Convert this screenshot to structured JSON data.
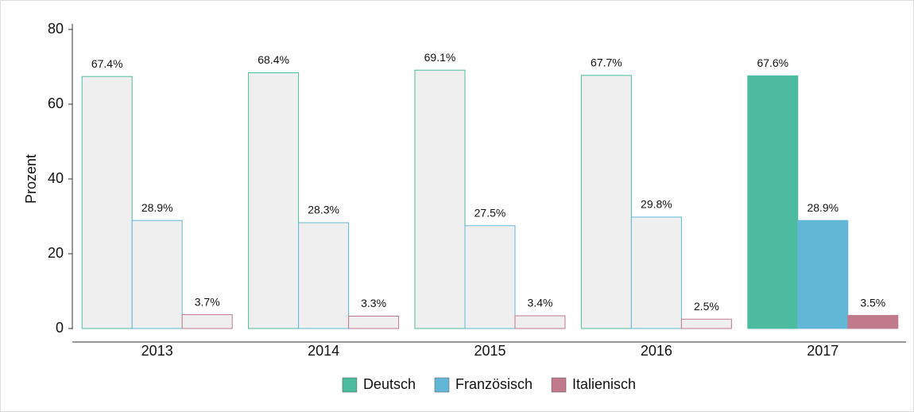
{
  "chart_data": {
    "type": "bar",
    "y_label": "Prozent",
    "categories": [
      "2013",
      "2014",
      "2015",
      "2016",
      "2017"
    ],
    "series": [
      {
        "name": "Deutsch",
        "color": "#4dbb9f",
        "values": [
          67.4,
          68.4,
          69.1,
          67.7,
          67.6
        ],
        "value_labels": [
          "67.4%",
          "68.4%",
          "69.1%",
          "67.7%",
          "67.6%"
        ]
      },
      {
        "name": "Französisch",
        "color": "#63b7d6",
        "values": [
          28.9,
          28.3,
          27.5,
          29.8,
          28.9
        ],
        "value_labels": [
          "28.9%",
          "28.3%",
          "27.5%",
          "29.8%",
          "28.9%"
        ]
      },
      {
        "name": "Italienisch",
        "color": "#c07a8c",
        "values": [
          3.7,
          3.3,
          3.4,
          2.5,
          3.5
        ],
        "value_labels": [
          "3.7%",
          "3.3%",
          "3.4%",
          "2.5%",
          "3.5%"
        ]
      }
    ],
    "highlight": 4,
    "dim_fill": "#efefef",
    "ylim": [
      0,
      80
    ],
    "yticks": [
      0,
      20,
      40,
      60,
      80
    ],
    "legend": "bottom"
  }
}
